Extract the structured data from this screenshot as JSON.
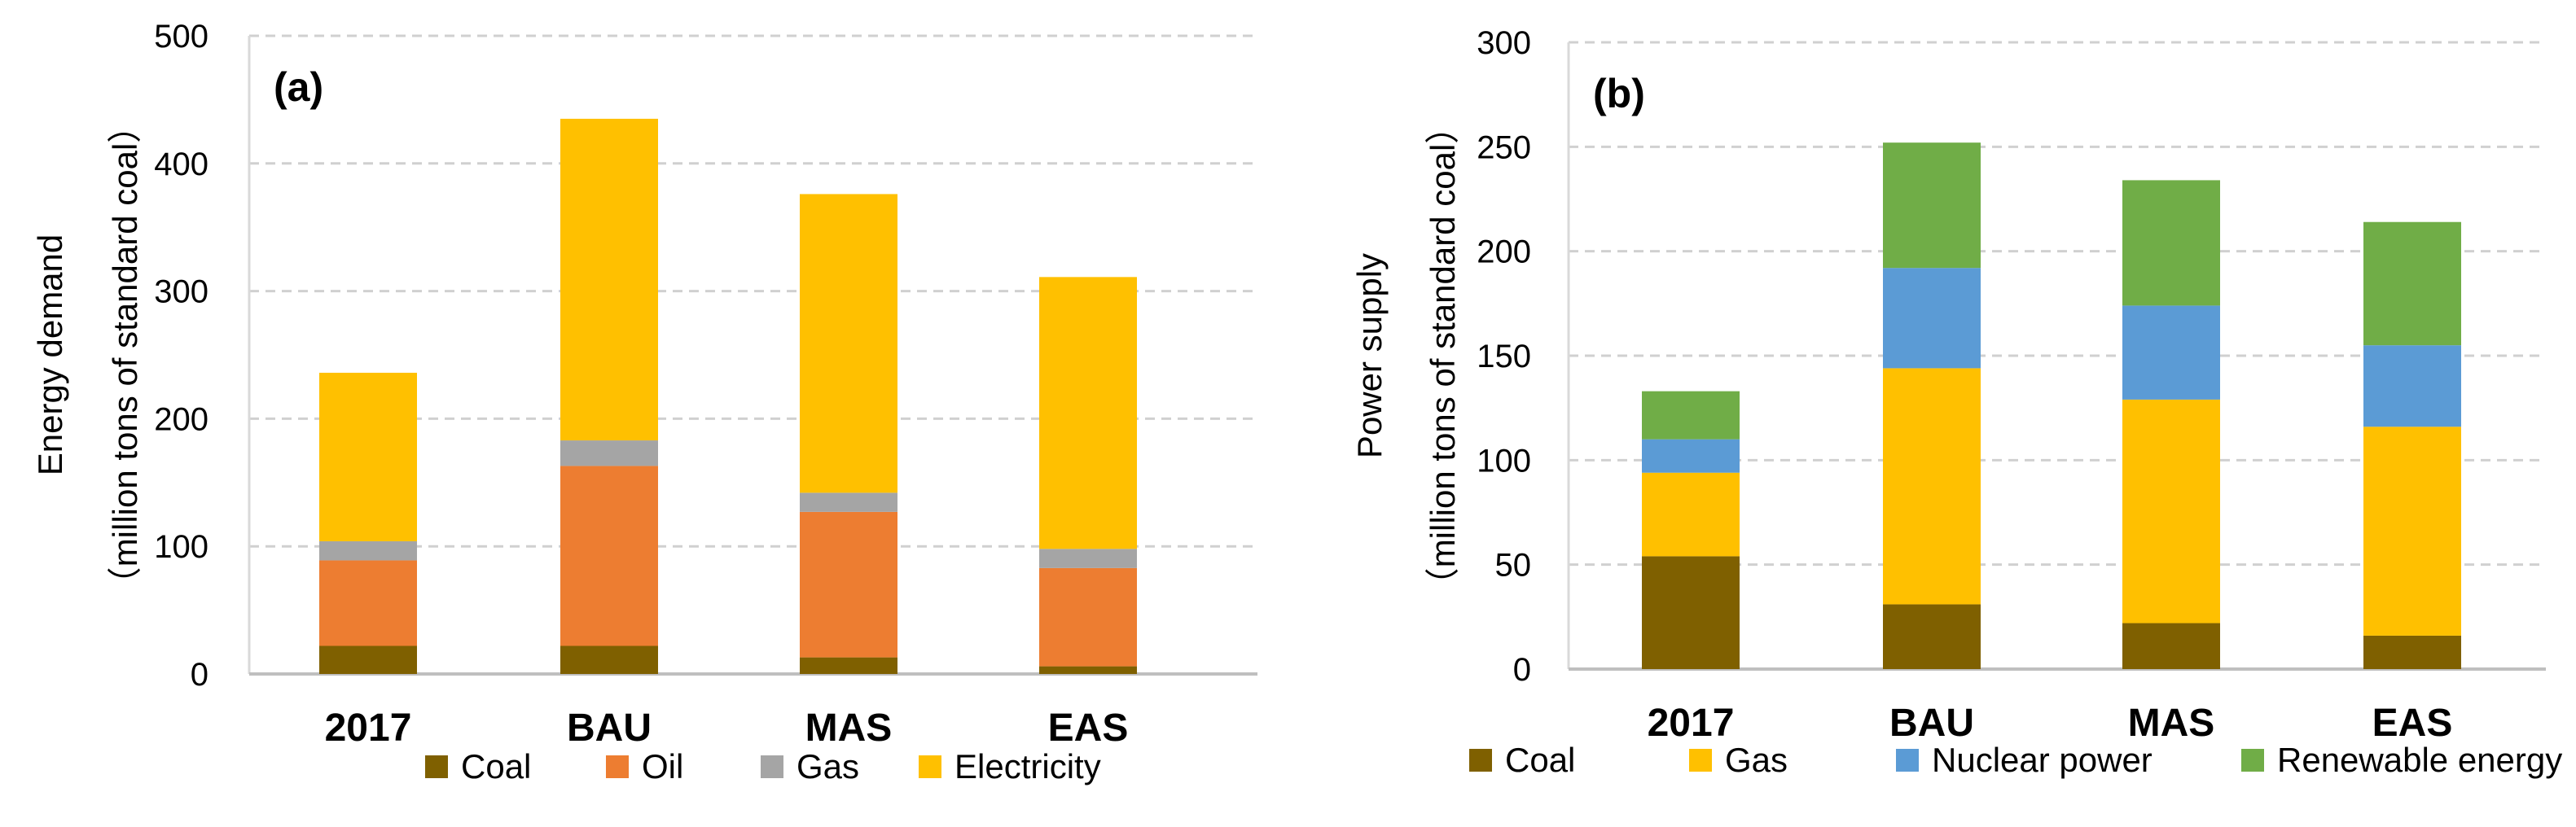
{
  "chart_data": [
    {
      "type": "bar",
      "stacked": true,
      "panel_label": "(a)",
      "ylabel_line1": "Energy demand",
      "ylabel_line2": "（million tons of standard coal）",
      "categories": [
        "2017",
        "BAU",
        "MAS",
        "EAS"
      ],
      "ylim": [
        0,
        500
      ],
      "yticks": [
        0,
        100,
        200,
        300,
        400,
        500
      ],
      "grid": true,
      "legend_position": "bottom",
      "series": [
        {
          "name": "Coal",
          "color": "#7F6000",
          "values": [
            22,
            22,
            13,
            6
          ]
        },
        {
          "name": "Oil",
          "color": "#ED7D31",
          "values": [
            67,
            141,
            114,
            77
          ]
        },
        {
          "name": "Gas",
          "color": "#A5A5A5",
          "values": [
            15,
            20,
            15,
            15
          ]
        },
        {
          "name": "Electricity",
          "color": "#FFC000",
          "values": [
            132,
            252,
            234,
            213
          ]
        }
      ]
    },
    {
      "type": "bar",
      "stacked": true,
      "panel_label": "(b)",
      "ylabel_line1": "Power supply",
      "ylabel_line2": "（million tons of standard coal）",
      "categories": [
        "2017",
        "BAU",
        "MAS",
        "EAS"
      ],
      "ylim": [
        0,
        300
      ],
      "yticks": [
        0,
        50,
        100,
        150,
        200,
        250,
        300
      ],
      "grid": true,
      "legend_position": "bottom",
      "series": [
        {
          "name": "Coal",
          "color": "#7F6000",
          "values": [
            54,
            31,
            22,
            16
          ]
        },
        {
          "name": "Gas",
          "color": "#FFC000",
          "values": [
            40,
            113,
            107,
            100
          ]
        },
        {
          "name": "Nuclear power",
          "color": "#5B9BD5",
          "values": [
            16,
            48,
            45,
            39
          ]
        },
        {
          "name": "Renewable energy",
          "color": "#70AD47",
          "values": [
            23,
            60,
            60,
            59
          ]
        }
      ]
    }
  ]
}
